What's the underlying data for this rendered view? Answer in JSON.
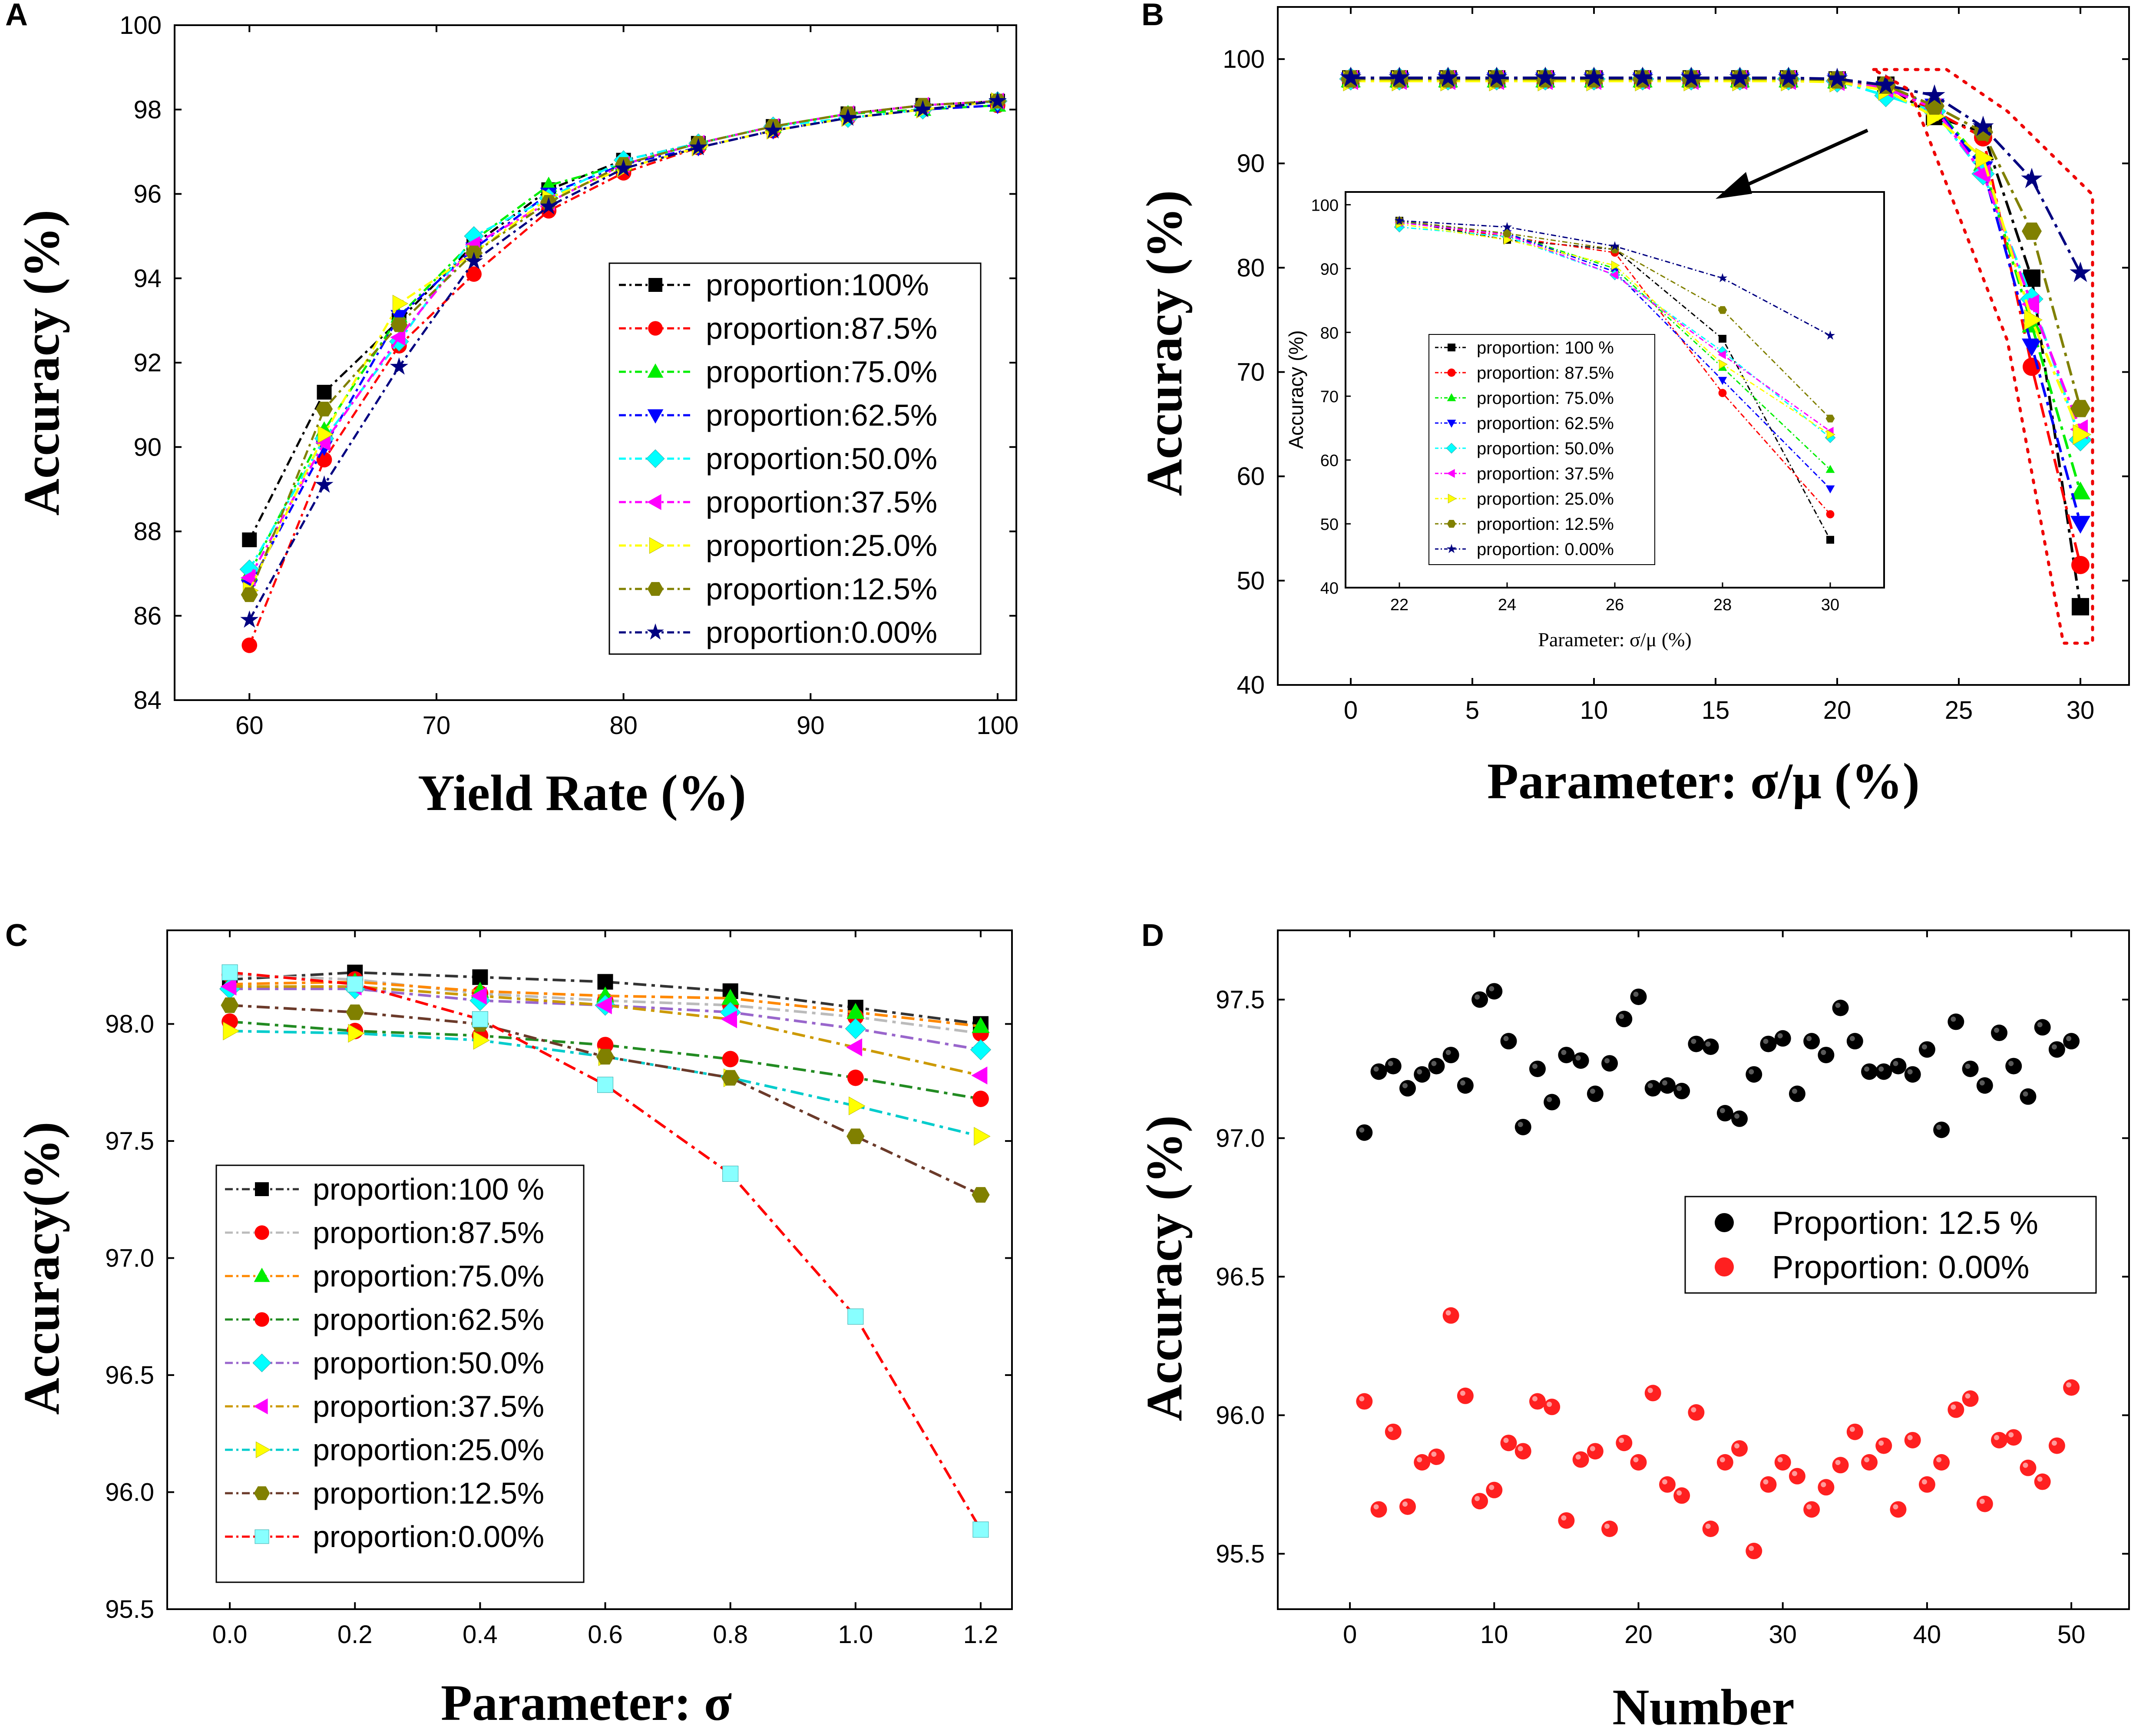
{
  "chart_data": [
    {
      "panel": "A",
      "type": "line",
      "xlabel": "Yield Rate (%)",
      "ylabel": "Accuracy (%)",
      "xlim": [
        56,
        101
      ],
      "ylim": [
        84,
        100
      ],
      "xticks": [
        60,
        70,
        80,
        90,
        100
      ],
      "yticks": [
        84,
        86,
        88,
        90,
        92,
        94,
        96,
        98,
        100
      ],
      "x": [
        60,
        64,
        68,
        72,
        76,
        80,
        84,
        88,
        92,
        96,
        100
      ],
      "legend_position": "center-right",
      "series": [
        {
          "name": "proportion:100%",
          "color": "#000000",
          "marker": "square",
          "values": [
            87.8,
            91.3,
            93.0,
            94.8,
            96.1,
            96.8,
            97.2,
            97.6,
            97.9,
            98.1,
            98.2
          ]
        },
        {
          "name": "proportion:87.5%",
          "color": "#ff0000",
          "marker": "circle",
          "values": [
            85.3,
            89.7,
            92.4,
            94.1,
            95.6,
            96.5,
            97.1,
            97.5,
            97.8,
            98.0,
            98.1
          ]
        },
        {
          "name": "proportion:75.0%",
          "color": "#00ee00",
          "marker": "triangle-up",
          "values": [
            87.0,
            90.4,
            93.1,
            94.9,
            96.2,
            96.7,
            97.2,
            97.6,
            97.9,
            98.0,
            98.1
          ]
        },
        {
          "name": "proportion:62.5%",
          "color": "#0000ff",
          "marker": "triangle-down",
          "values": [
            86.7,
            90.0,
            93.1,
            94.7,
            96.0,
            96.7,
            97.1,
            97.5,
            97.8,
            98.0,
            98.1
          ]
        },
        {
          "name": "proportion:50.0%",
          "color": "#00ffff",
          "marker": "diamond",
          "values": [
            87.1,
            90.2,
            92.5,
            95.0,
            95.9,
            96.8,
            97.2,
            97.6,
            97.8,
            98.0,
            98.2
          ]
        },
        {
          "name": "proportion:37.5%",
          "color": "#ff00ff",
          "marker": "triangle-left",
          "values": [
            86.9,
            90.1,
            92.6,
            94.8,
            95.8,
            96.7,
            97.2,
            97.6,
            97.9,
            98.1,
            98.2
          ]
        },
        {
          "name": "proportion:25.0%",
          "color": "#ffff00",
          "marker": "triangle-right",
          "values": [
            86.6,
            90.3,
            93.4,
            94.6,
            95.9,
            96.6,
            97.1,
            97.5,
            97.8,
            98.0,
            98.2
          ]
        },
        {
          "name": "proportion:12.5%",
          "color": "#808000",
          "marker": "hexagon",
          "values": [
            86.5,
            90.9,
            92.9,
            94.6,
            95.8,
            96.7,
            97.2,
            97.6,
            97.9,
            98.1,
            98.2
          ]
        },
        {
          "name": "proportion:0.00%",
          "color": "#000080",
          "marker": "star",
          "values": [
            85.9,
            89.1,
            91.9,
            94.4,
            95.7,
            96.6,
            97.1,
            97.5,
            97.8,
            98.0,
            98.2
          ]
        }
      ]
    },
    {
      "panel": "B",
      "type": "line",
      "xlabel": "Parameter: σ/μ (%)",
      "ylabel": "Accuracy (%)",
      "xlim": [
        -3,
        32
      ],
      "ylim": [
        40,
        105
      ],
      "xticks": [
        0,
        5,
        10,
        15,
        20,
        25,
        30
      ],
      "yticks": [
        40,
        50,
        60,
        70,
        80,
        90,
        100
      ],
      "x": [
        0,
        2,
        4,
        6,
        8,
        10,
        12,
        14,
        16,
        18,
        20,
        22,
        24,
        26,
        28,
        30
      ],
      "series": [
        {
          "name": "proportion: 100 %",
          "color": "#000000",
          "marker": "square",
          "values": [
            98.1,
            98.1,
            98.1,
            98.1,
            98.1,
            98.1,
            98.1,
            98.1,
            98.1,
            98.1,
            98.0,
            97.5,
            94.5,
            93.0,
            79.0,
            47.5
          ]
        },
        {
          "name": "proportion: 87.5%",
          "color": "#ff0000",
          "marker": "circle",
          "values": [
            98.0,
            98.0,
            98.0,
            98.0,
            98.0,
            98.0,
            98.0,
            98.0,
            98.0,
            98.0,
            97.9,
            97.4,
            95.0,
            92.5,
            70.5,
            51.5
          ]
        },
        {
          "name": "proportion: 75.0%",
          "color": "#00ee00",
          "marker": "triangle-up",
          "values": [
            98.0,
            98.0,
            98.0,
            98.0,
            98.0,
            98.0,
            98.0,
            98.0,
            98.0,
            98.0,
            97.9,
            97.3,
            95.5,
            90.0,
            74.5,
            58.5
          ]
        },
        {
          "name": "proportion: 62.5%",
          "color": "#0000ff",
          "marker": "triangle-down",
          "values": [
            98.0,
            98.0,
            98.0,
            98.0,
            98.0,
            98.0,
            98.0,
            98.0,
            98.0,
            98.0,
            97.9,
            97.2,
            95.5,
            89.5,
            72.5,
            55.5
          ]
        },
        {
          "name": "proportion: 50.0%",
          "color": "#00ffff",
          "marker": "diamond",
          "values": [
            98.1,
            98.1,
            98.1,
            98.1,
            98.1,
            98.1,
            98.1,
            98.1,
            98.1,
            98.1,
            97.9,
            96.5,
            95.0,
            89.0,
            77.0,
            63.5
          ]
        },
        {
          "name": "proportion: 37.5%",
          "color": "#ff00ff",
          "marker": "triangle-left",
          "values": [
            98.0,
            98.0,
            98.0,
            98.0,
            98.0,
            98.0,
            98.0,
            98.0,
            98.0,
            98.0,
            97.9,
            97.2,
            95.3,
            89.0,
            76.5,
            64.5
          ]
        },
        {
          "name": "proportion: 25.0%",
          "color": "#ffff00",
          "marker": "triangle-right",
          "values": [
            97.9,
            97.9,
            97.9,
            97.9,
            97.9,
            97.9,
            97.9,
            97.9,
            97.9,
            97.9,
            97.8,
            97.0,
            94.5,
            90.5,
            75.0,
            64.0
          ]
        },
        {
          "name": "proportion: 12.5%",
          "color": "#808000",
          "marker": "hexagon",
          "values": [
            98.1,
            98.1,
            98.1,
            98.1,
            98.1,
            98.1,
            98.1,
            98.1,
            98.1,
            98.1,
            98.0,
            97.5,
            95.5,
            93.0,
            83.5,
            66.5
          ]
        },
        {
          "name": "proportion: 0.00%",
          "color": "#000080",
          "marker": "star",
          "values": [
            98.2,
            98.2,
            98.2,
            98.2,
            98.2,
            98.2,
            98.2,
            98.2,
            98.2,
            98.2,
            98.1,
            97.5,
            96.5,
            93.5,
            88.5,
            79.5
          ]
        }
      ],
      "inset": {
        "xlabel": "Parameter: σ/μ (%)",
        "ylabel": "Accuracy (%)",
        "xlim": [
          21,
          31
        ],
        "ylim": [
          40,
          102
        ],
        "xticks": [
          22,
          24,
          26,
          28,
          30
        ],
        "yticks": [
          40,
          50,
          60,
          70,
          80,
          90,
          100
        ],
        "x_from_index": 11
      }
    },
    {
      "panel": "C",
      "type": "line",
      "xlabel": "Parameter: σ",
      "ylabel": "Accuracy(%)",
      "xlim": [
        -0.1,
        1.25
      ],
      "ylim": [
        95.5,
        98.4
      ],
      "xticks": [
        0.0,
        0.2,
        0.4,
        0.6,
        0.8,
        1.0,
        1.2
      ],
      "xtick_labels": [
        "0.0",
        "0.2",
        "0.4",
        "0.6",
        "0.8",
        "1.0",
        "1.2"
      ],
      "yticks": [
        95.5,
        96.0,
        96.5,
        97.0,
        97.5,
        98.0
      ],
      "ytick_labels": [
        "95.5",
        "96.0",
        "96.5",
        "97.0",
        "97.5",
        "98.0"
      ],
      "x": [
        0.0,
        0.2,
        0.4,
        0.6,
        0.8,
        1.0,
        1.2
      ],
      "series": [
        {
          "name": "proportion:100 %",
          "color": "#000000",
          "line": "#333333",
          "marker": "square",
          "values": [
            98.19,
            98.22,
            98.2,
            98.18,
            98.14,
            98.07,
            98.0
          ]
        },
        {
          "name": "proportion:87.5%",
          "color": "#ff0000",
          "line": "#bbbbbb",
          "marker": "circle",
          "values": [
            98.21,
            98.19,
            98.13,
            98.1,
            98.08,
            98.03,
            97.96
          ]
        },
        {
          "name": "proportion:75.0%",
          "color": "#00ee00",
          "line": "#ff8800",
          "marker": "triangle-up",
          "values": [
            98.17,
            98.18,
            98.14,
            98.12,
            98.11,
            98.05,
            97.99
          ]
        },
        {
          "name": "proportion:62.5%",
          "color": "#ff0000",
          "line": "#228b22",
          "marker": "circle",
          "values": [
            98.01,
            97.97,
            97.95,
            97.91,
            97.85,
            97.77,
            97.68
          ]
        },
        {
          "name": "proportion:50.0%",
          "color": "#00ffff",
          "line": "#9966cc",
          "marker": "diamond",
          "values": [
            98.15,
            98.15,
            98.1,
            98.08,
            98.05,
            97.98,
            97.89
          ]
        },
        {
          "name": "proportion:37.5%",
          "color": "#ff00ff",
          "line": "#cc9900",
          "marker": "triangle-left",
          "values": [
            98.16,
            98.16,
            98.12,
            98.08,
            98.02,
            97.9,
            97.78
          ]
        },
        {
          "name": "proportion:25.0%",
          "color": "#ffff00",
          "line": "#00cccc",
          "marker": "triangle-right",
          "values": [
            97.97,
            97.96,
            97.93,
            97.86,
            97.77,
            97.65,
            97.52
          ]
        },
        {
          "name": "proportion:12.5%",
          "color": "#808000",
          "line": "#6b3a2a",
          "marker": "hexagon",
          "values": [
            98.08,
            98.05,
            98.0,
            97.86,
            97.77,
            97.52,
            97.27
          ]
        },
        {
          "name": "proportion:0.00%",
          "color": "#88ffff",
          "line": "#ff0000",
          "marker": "square",
          "values": [
            98.22,
            98.17,
            98.02,
            97.74,
            97.36,
            96.75,
            95.84
          ]
        }
      ]
    },
    {
      "panel": "D",
      "type": "scatter",
      "xlabel": "Number",
      "ylabel": "Accuracy (%)",
      "xlim": [
        -5,
        54
      ],
      "ylim": [
        95.3,
        97.75
      ],
      "xticks": [
        0,
        10,
        20,
        30,
        40,
        50
      ],
      "yticks": [
        95.5,
        96.0,
        96.5,
        97.0,
        97.5
      ],
      "ytick_labels": [
        "95.5",
        "96.0",
        "96.5",
        "97.0",
        "97.5"
      ],
      "series": [
        {
          "name": "Proportion: 12.5 %",
          "color": "#000000",
          "x": [
            1,
            2,
            3,
            4,
            5,
            6,
            7,
            8,
            9,
            10,
            11,
            12,
            13,
            14,
            15,
            16,
            17,
            18,
            19,
            20,
            21,
            22,
            23,
            24,
            25,
            26,
            27,
            28,
            29,
            30,
            31,
            32,
            33,
            34,
            35,
            36,
            37,
            38,
            39,
            40,
            41,
            42,
            43,
            44,
            45,
            46,
            47,
            48,
            49,
            50
          ],
          "y": [
            97.02,
            97.24,
            97.26,
            97.18,
            97.23,
            97.26,
            97.3,
            97.19,
            97.5,
            97.53,
            97.35,
            97.04,
            97.25,
            97.13,
            97.3,
            97.28,
            97.16,
            97.27,
            97.43,
            97.51,
            97.18,
            97.19,
            97.17,
            97.34,
            97.33,
            97.09,
            97.07,
            97.23,
            97.34,
            97.36,
            97.16,
            97.35,
            97.3,
            97.47,
            97.35,
            97.24,
            97.24,
            97.26,
            97.23,
            97.32,
            97.03,
            97.42,
            97.25,
            97.19,
            97.38,
            97.26,
            97.15,
            97.4,
            97.32,
            97.35
          ]
        },
        {
          "name": "Proportion:  0.00%",
          "color": "#ff2020",
          "x": [
            1,
            2,
            3,
            4,
            5,
            6,
            7,
            8,
            9,
            10,
            11,
            12,
            13,
            14,
            15,
            16,
            17,
            18,
            19,
            20,
            21,
            22,
            23,
            24,
            25,
            26,
            27,
            28,
            29,
            30,
            31,
            32,
            33,
            34,
            35,
            36,
            37,
            38,
            39,
            40,
            41,
            42,
            43,
            44,
            45,
            46,
            47,
            48,
            49,
            50
          ],
          "y": [
            96.05,
            95.66,
            95.94,
            95.67,
            95.83,
            95.85,
            96.36,
            96.07,
            95.69,
            95.73,
            95.9,
            95.87,
            96.05,
            96.03,
            95.62,
            95.84,
            95.87,
            95.59,
            95.9,
            95.83,
            96.08,
            95.75,
            95.71,
            96.01,
            95.59,
            95.83,
            95.88,
            95.51,
            95.75,
            95.83,
            95.78,
            95.66,
            95.74,
            95.82,
            95.94,
            95.83,
            95.89,
            95.66,
            95.91,
            95.75,
            95.83,
            96.02,
            96.06,
            95.68,
            95.91,
            95.92,
            95.81,
            95.76,
            95.89,
            96.1
          ]
        }
      ]
    }
  ]
}
